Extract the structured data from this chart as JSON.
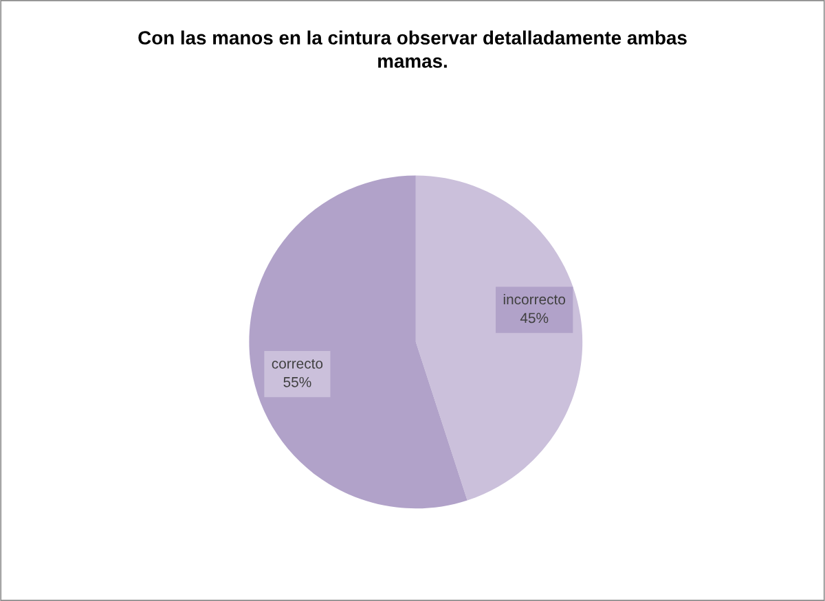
{
  "chart_data": {
    "type": "pie",
    "title": "Con las manos en la cintura observar detalladamente ambas mamas.",
    "categories": [
      "incorrecto",
      "correcto"
    ],
    "values": [
      45,
      55
    ],
    "colors": [
      "#cbc0db",
      "#b1a2c9"
    ],
    "value_labels": [
      "45%",
      "55%"
    ],
    "legend": false
  }
}
